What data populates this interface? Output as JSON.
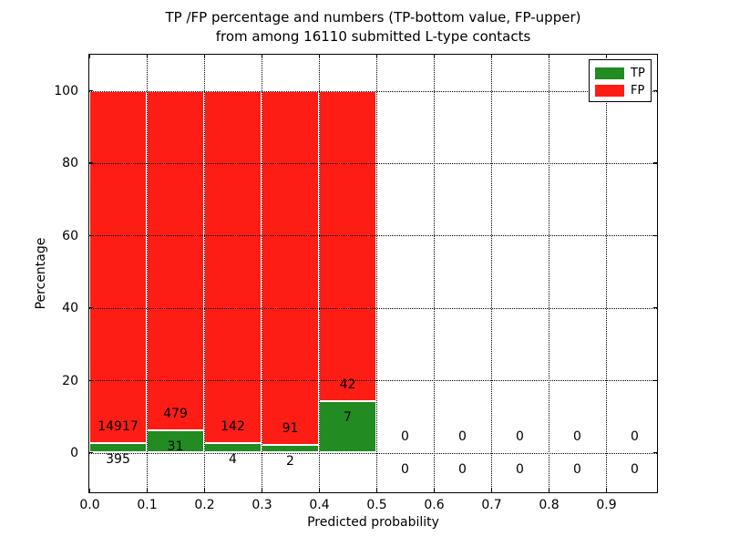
{
  "title": {
    "line1": "TP /FP percentage and numbers (TP-bottom value, FP-upper)",
    "line2": "from among 16110 submitted L-type contacts"
  },
  "axes": {
    "xlabel": "Predicted probability",
    "ylabel": "Percentage",
    "xtick_labels": [
      "0.0",
      "0.1",
      "0.2",
      "0.3",
      "0.4",
      "0.5",
      "0.6",
      "0.7",
      "0.8",
      "0.9"
    ],
    "ytick_values": [
      0,
      20,
      40,
      60,
      80,
      100
    ]
  },
  "legend": {
    "items": [
      {
        "label": "TP",
        "color": "#228b22"
      },
      {
        "label": "FP",
        "color": "#fd1d14"
      }
    ],
    "position": "upper right"
  },
  "chart_data": {
    "type": "bar",
    "stacked": true,
    "title": "TP /FP percentage and numbers (TP-bottom value, FP-upper) from among 16110 submitted L-type contacts",
    "xlabel": "Predicted probability",
    "ylabel": "Percentage",
    "xlim": [
      0.0,
      1.0
    ],
    "ylim": [
      -11,
      110
    ],
    "grid": "dotted both axes at major ticks",
    "legend_position": "upper right",
    "total_contacts": 16110,
    "bin_width": 0.1,
    "xticks": [
      "0.0",
      "0.1",
      "0.2",
      "0.3",
      "0.4",
      "0.5",
      "0.6",
      "0.7",
      "0.8",
      "0.9"
    ],
    "yticks": [
      0,
      20,
      40,
      60,
      80,
      100
    ],
    "series": [
      {
        "name": "TP",
        "color": "#228b22",
        "counts": [
          395,
          31,
          4,
          2,
          7,
          0,
          0,
          0,
          0,
          0
        ]
      },
      {
        "name": "FP",
        "color": "#fd1d14",
        "counts": [
          14917,
          479,
          142,
          91,
          42,
          0,
          0,
          0,
          0,
          0
        ]
      }
    ],
    "bins": [
      {
        "range": "0.0-0.1",
        "tp": 395,
        "fp": 14917,
        "tp_pct": 2.58,
        "fp_pct": 97.42
      },
      {
        "range": "0.1-0.2",
        "tp": 31,
        "fp": 479,
        "tp_pct": 6.08,
        "fp_pct": 93.92
      },
      {
        "range": "0.2-0.3",
        "tp": 4,
        "fp": 142,
        "tp_pct": 2.74,
        "fp_pct": 97.26
      },
      {
        "range": "0.3-0.4",
        "tp": 2,
        "fp": 91,
        "tp_pct": 2.15,
        "fp_pct": 97.85
      },
      {
        "range": "0.4-0.5",
        "tp": 7,
        "fp": 42,
        "tp_pct": 14.29,
        "fp_pct": 85.71
      },
      {
        "range": "0.5-0.6",
        "tp": 0,
        "fp": 0,
        "tp_pct": 0,
        "fp_pct": 0
      },
      {
        "range": "0.6-0.7",
        "tp": 0,
        "fp": 0,
        "tp_pct": 0,
        "fp_pct": 0
      },
      {
        "range": "0.7-0.8",
        "tp": 0,
        "fp": 0,
        "tp_pct": 0,
        "fp_pct": 0
      },
      {
        "range": "0.8-0.9",
        "tp": 0,
        "fp": 0,
        "tp_pct": 0,
        "fp_pct": 0
      },
      {
        "range": "0.9-1.0",
        "tp": 0,
        "fp": 0,
        "tp_pct": 0,
        "fp_pct": 0
      }
    ]
  }
}
